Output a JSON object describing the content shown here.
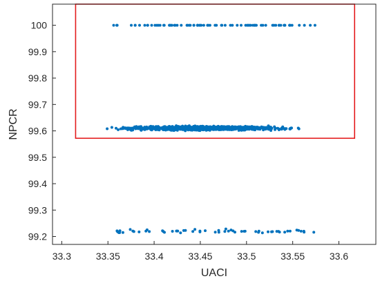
{
  "chart_data": {
    "type": "scatter",
    "xlabel": "UACI",
    "ylabel": "NPCR",
    "xlim": [
      33.29,
      33.64
    ],
    "ylim": [
      99.17,
      100.08
    ],
    "x_ticks": [
      "33.3",
      "33.35",
      "33.4",
      "33.45",
      "33.5",
      "33.55",
      "33.6"
    ],
    "y_ticks": [
      "99.2",
      "99.3",
      "99.4",
      "99.5",
      "99.6",
      "99.7",
      "99.8",
      "99.9",
      "100"
    ],
    "grid": false,
    "marker_color": "#0072BD",
    "highlight_box_color": "#E31A1C",
    "highlight_box": {
      "x": [
        33.315,
        33.617
      ],
      "y": [
        99.572,
        100.08
      ]
    },
    "clusters": [
      {
        "y_value": 100.0,
        "x_range": [
          33.355,
          33.575
        ],
        "approx_points": 80
      },
      {
        "y_value": 99.61,
        "y_spread": 0.015,
        "x_range": [
          33.3,
          33.61
        ],
        "approx_points": 1200
      },
      {
        "y_value": 99.22,
        "y_spread": 0.015,
        "x_range": [
          33.35,
          33.575
        ],
        "approx_points": 60
      }
    ]
  }
}
